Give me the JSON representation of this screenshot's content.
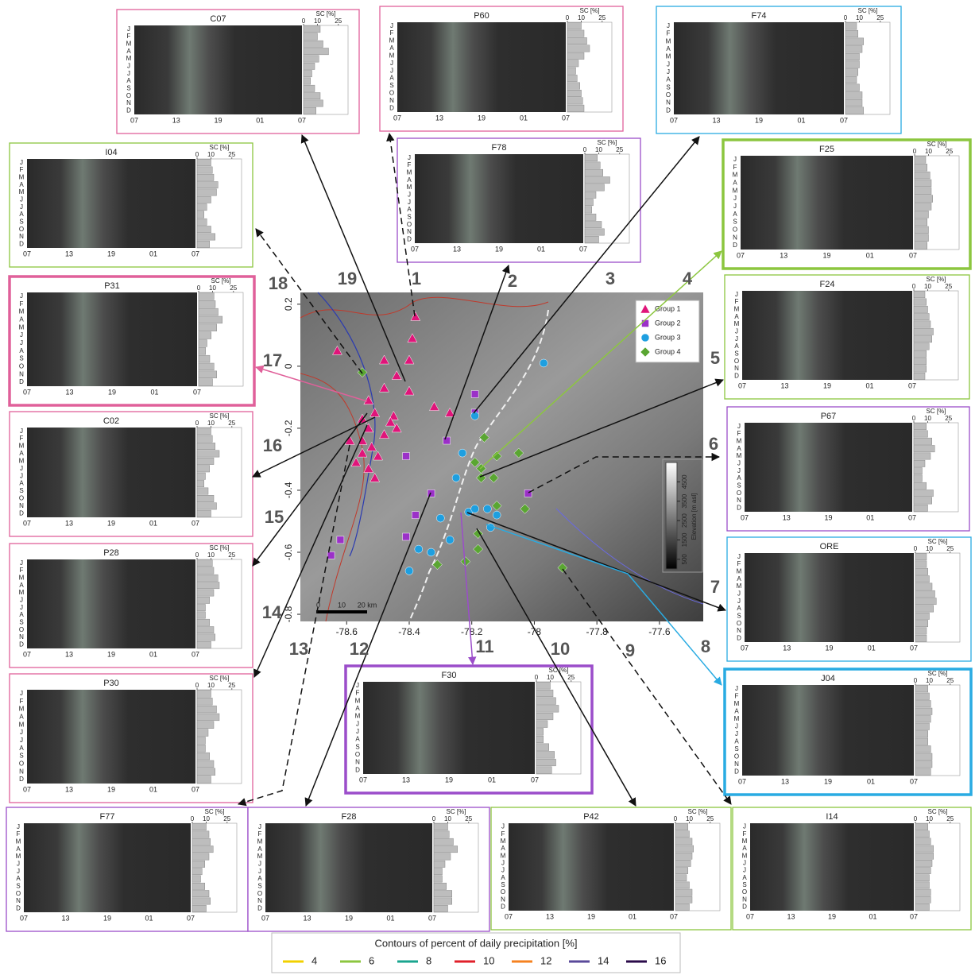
{
  "months": [
    "J",
    "F",
    "M",
    "A",
    "M",
    "J",
    "J",
    "A",
    "S",
    "O",
    "N",
    "D"
  ],
  "hour_ticks": [
    "07",
    "13",
    "19",
    "01",
    "07"
  ],
  "sc_label": "SC [%]",
  "sc_ticks": [
    0,
    10,
    25
  ],
  "sc_lim": [
    0,
    32
  ],
  "panels": [
    {
      "title": "C07",
      "color": "#e0609a",
      "thick": false,
      "sc": [
        12,
        10,
        14,
        18,
        11,
        8,
        6,
        5,
        8,
        12,
        14,
        9
      ]
    },
    {
      "title": "P60",
      "color": "#e0609a",
      "thick": false,
      "sc": [
        10,
        12,
        14,
        16,
        12,
        8,
        6,
        7,
        9,
        10,
        11,
        12
      ]
    },
    {
      "title": "F74",
      "color": "#29abe2",
      "thick": false,
      "sc": [
        8,
        9,
        13,
        12,
        10,
        10,
        9,
        8,
        10,
        12,
        12,
        13
      ]
    },
    {
      "title": "F78",
      "color": "#9b4dca",
      "thick": false,
      "sc": [
        9,
        11,
        13,
        18,
        14,
        8,
        6,
        5,
        8,
        12,
        14,
        10
      ]
    },
    {
      "title": "I04",
      "color": "#8cc63f",
      "thick": false,
      "sc": [
        10,
        11,
        12,
        15,
        14,
        10,
        7,
        5,
        7,
        10,
        13,
        9
      ]
    },
    {
      "title": "P31",
      "color": "#e0609a",
      "thick": true,
      "sc": [
        11,
        12,
        14,
        17,
        13,
        9,
        6,
        5,
        8,
        11,
        13,
        10
      ]
    },
    {
      "title": "C02",
      "color": "#e0609a",
      "thick": false,
      "sc": [
        10,
        11,
        13,
        16,
        12,
        9,
        6,
        5,
        8,
        12,
        14,
        10
      ]
    },
    {
      "title": "P28",
      "color": "#e0609a",
      "thick": false,
      "sc": [
        11,
        12,
        15,
        16,
        12,
        9,
        6,
        6,
        9,
        12,
        13,
        10
      ]
    },
    {
      "title": "P30",
      "color": "#e0609a",
      "thick": false,
      "sc": [
        10,
        11,
        14,
        16,
        12,
        8,
        6,
        6,
        9,
        12,
        13,
        10
      ]
    },
    {
      "title": "F25",
      "color": "#8cc63f",
      "thick": true,
      "sc": [
        8,
        9,
        11,
        12,
        12,
        13,
        12,
        10,
        9,
        10,
        10,
        9
      ]
    },
    {
      "title": "F24",
      "color": "#8cc63f",
      "thick": false,
      "sc": [
        8,
        9,
        10,
        11,
        12,
        14,
        13,
        11,
        9,
        9,
        9,
        8
      ]
    },
    {
      "title": "P67",
      "color": "#9b4dca",
      "thick": false,
      "sc": [
        9,
        10,
        13,
        15,
        12,
        8,
        6,
        6,
        9,
        14,
        13,
        10
      ]
    },
    {
      "title": "ORE",
      "color": "#29abe2",
      "thick": false,
      "sc": [
        8,
        8,
        9,
        10,
        12,
        14,
        15,
        13,
        10,
        9,
        8,
        8
      ]
    },
    {
      "title": "J04",
      "color": "#29abe2",
      "thick": true,
      "sc": [
        9,
        10,
        11,
        12,
        11,
        10,
        9,
        9,
        11,
        12,
        12,
        11
      ]
    },
    {
      "title": "F30",
      "color": "#9b4dca",
      "thick": true,
      "sc": [
        10,
        12,
        14,
        16,
        12,
        8,
        5,
        5,
        9,
        13,
        14,
        11
      ]
    },
    {
      "title": "F77",
      "color": "#9b4dca",
      "thick": false,
      "sc": [
        10,
        12,
        13,
        15,
        12,
        9,
        7,
        6,
        9,
        12,
        13,
        10
      ]
    },
    {
      "title": "F28",
      "color": "#9b4dca",
      "thick": false,
      "sc": [
        10,
        11,
        14,
        17,
        12,
        8,
        6,
        6,
        9,
        13,
        13,
        10
      ]
    },
    {
      "title": "P42",
      "color": "#8cc63f",
      "thick": false,
      "sc": [
        9,
        10,
        12,
        13,
        12,
        11,
        9,
        8,
        10,
        12,
        12,
        10
      ]
    },
    {
      "title": "I14",
      "color": "#8cc63f",
      "thick": false,
      "sc": [
        9,
        10,
        11,
        13,
        13,
        12,
        11,
        10,
        10,
        11,
        11,
        10
      ]
    }
  ],
  "map": {
    "xlim": [
      -78.748,
      -77.46
    ],
    "ylim": [
      -0.823,
      0.238
    ],
    "xticks": [
      -78.6,
      -78.4,
      -78.2,
      -78.0,
      -77.8,
      -77.6
    ],
    "yticks": [
      0.2,
      0.0,
      -0.2,
      -0.4,
      -0.6,
      -0.8
    ],
    "groups": [
      {
        "name": "Group 1",
        "color": "#e0157a",
        "shape": "triangle",
        "points": [
          [
            -78.38,
            0.16
          ],
          [
            -78.63,
            0.05
          ],
          [
            -78.39,
            0.09
          ],
          [
            -78.48,
            0.02
          ],
          [
            -78.4,
            0.02
          ],
          [
            -78.44,
            -0.03
          ],
          [
            -78.4,
            -0.08
          ],
          [
            -78.48,
            -0.07
          ],
          [
            -78.53,
            -0.11
          ],
          [
            -78.51,
            -0.15
          ],
          [
            -78.45,
            -0.16
          ],
          [
            -78.55,
            -0.17
          ],
          [
            -78.46,
            -0.18
          ],
          [
            -78.53,
            -0.2
          ],
          [
            -78.48,
            -0.22
          ],
          [
            -78.59,
            -0.24
          ],
          [
            -78.55,
            -0.24
          ],
          [
            -78.52,
            -0.26
          ],
          [
            -78.55,
            -0.28
          ],
          [
            -78.5,
            -0.29
          ],
          [
            -78.57,
            -0.31
          ],
          [
            -78.53,
            -0.33
          ],
          [
            -78.51,
            -0.36
          ],
          [
            -78.44,
            -0.2
          ],
          [
            -78.27,
            -0.15
          ],
          [
            -78.32,
            -0.13
          ]
        ]
      },
      {
        "name": "Group 2",
        "color": "#9b30c8",
        "shape": "square",
        "points": [
          [
            -78.19,
            -0.09
          ],
          [
            -78.19,
            -0.15
          ],
          [
            -78.28,
            -0.24
          ],
          [
            -78.41,
            -0.29
          ],
          [
            -78.33,
            -0.41
          ],
          [
            -78.38,
            -0.48
          ],
          [
            -78.41,
            -0.55
          ],
          [
            -78.62,
            -0.56
          ],
          [
            -78.65,
            -0.61
          ],
          [
            -78.02,
            -0.41
          ]
        ]
      },
      {
        "name": "Group 3",
        "color": "#1e9fe0",
        "shape": "circle",
        "points": [
          [
            -78.19,
            -0.16
          ],
          [
            -78.23,
            -0.28
          ],
          [
            -78.25,
            -0.36
          ],
          [
            -78.21,
            -0.47
          ],
          [
            -78.19,
            -0.46
          ],
          [
            -78.15,
            -0.46
          ],
          [
            -78.12,
            -0.48
          ],
          [
            -78.3,
            -0.49
          ],
          [
            -78.27,
            -0.56
          ],
          [
            -78.33,
            -0.6
          ],
          [
            -78.37,
            -0.59
          ],
          [
            -78.14,
            -0.52
          ],
          [
            -77.97,
            0.01
          ],
          [
            -78.4,
            -0.66
          ]
        ]
      },
      {
        "name": "Group 4",
        "color": "#5aa632",
        "shape": "diamond",
        "points": [
          [
            -78.55,
            -0.02
          ],
          [
            -78.16,
            -0.23
          ],
          [
            -78.19,
            -0.31
          ],
          [
            -78.17,
            -0.33
          ],
          [
            -78.12,
            -0.29
          ],
          [
            -78.05,
            -0.28
          ],
          [
            -78.13,
            -0.36
          ],
          [
            -78.17,
            -0.36
          ],
          [
            -78.12,
            -0.45
          ],
          [
            -78.03,
            -0.46
          ],
          [
            -78.18,
            -0.54
          ],
          [
            -78.18,
            -0.59
          ],
          [
            -78.22,
            -0.63
          ],
          [
            -78.31,
            -0.64
          ],
          [
            -77.91,
            -0.65
          ]
        ]
      }
    ],
    "scale_labels": [
      "0",
      "10",
      "20 km"
    ],
    "colorbar_label": "Elevation [m asl]",
    "colorbar_lim": [
      0,
      5500
    ],
    "colorbar_ticks": [
      500,
      1500,
      2500,
      3500,
      4500
    ]
  },
  "arrow_numbers": [
    1,
    2,
    3,
    4,
    5,
    6,
    7,
    8,
    9,
    10,
    11,
    12,
    13,
    14,
    15,
    16,
    17,
    18,
    19
  ],
  "legend": {
    "title": "Contours of percent of daily precipitation [%]",
    "entries": [
      {
        "value": 4,
        "color": "#f2d000"
      },
      {
        "value": 6,
        "color": "#8cc63f"
      },
      {
        "value": 8,
        "color": "#1aa58f"
      },
      {
        "value": 10,
        "color": "#e0202a"
      },
      {
        "value": 12,
        "color": "#f58220"
      },
      {
        "value": 14,
        "color": "#5a4a9a"
      },
      {
        "value": 16,
        "color": "#2a0a4a"
      }
    ]
  }
}
